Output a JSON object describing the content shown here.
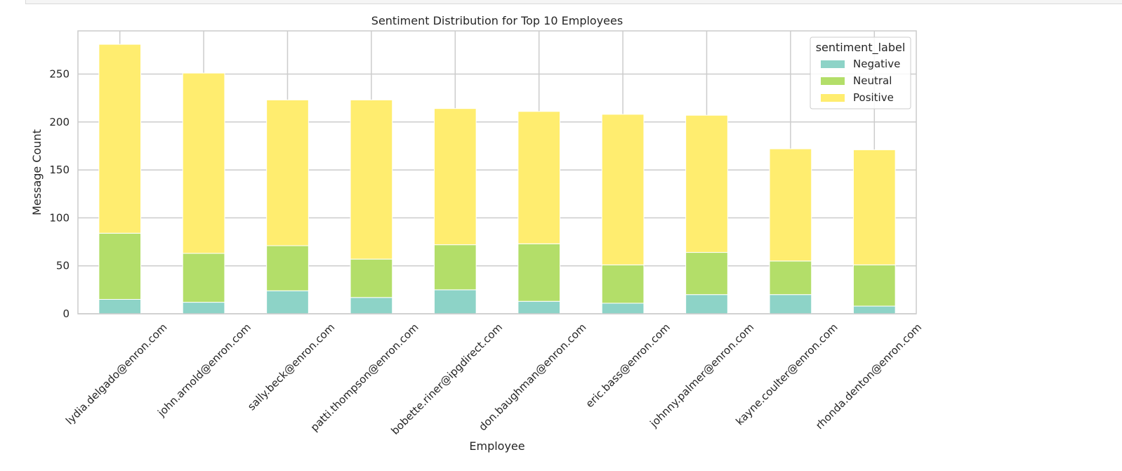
{
  "chart_data": {
    "type": "bar",
    "stacked": true,
    "title": "Sentiment Distribution for Top 10 Employees",
    "xlabel": "Employee",
    "ylabel": "Message Count",
    "ylim": [
      0,
      295
    ],
    "yticks": [
      0,
      50,
      100,
      150,
      200,
      250
    ],
    "grid": true,
    "legend": {
      "title": "sentiment_label",
      "placement": "top-right"
    },
    "categories": [
      "lydia.delgado@enron.com",
      "john.arnold@enron.com",
      "sally.beck@enron.com",
      "patti.thompson@enron.com",
      "bobette.riner@ipgdirect.com",
      "don.baughman@enron.com",
      "eric.bass@enron.com",
      "johnny.palmer@enron.com",
      "kayne.coulter@enron.com",
      "rhonda.denton@enron.com"
    ],
    "series": [
      {
        "name": "Negative",
        "color": "#8dd3c7",
        "values": [
          15,
          12,
          24,
          17,
          25,
          13,
          11,
          20,
          20,
          8
        ]
      },
      {
        "name": "Neutral",
        "color": "#b3de69",
        "values": [
          69,
          51,
          47,
          40,
          47,
          60,
          40,
          44,
          35,
          43
        ]
      },
      {
        "name": "Positive",
        "color": "#ffed6f",
        "values": [
          197,
          188,
          152,
          166,
          142,
          138,
          157,
          143,
          117,
          120
        ]
      }
    ]
  }
}
